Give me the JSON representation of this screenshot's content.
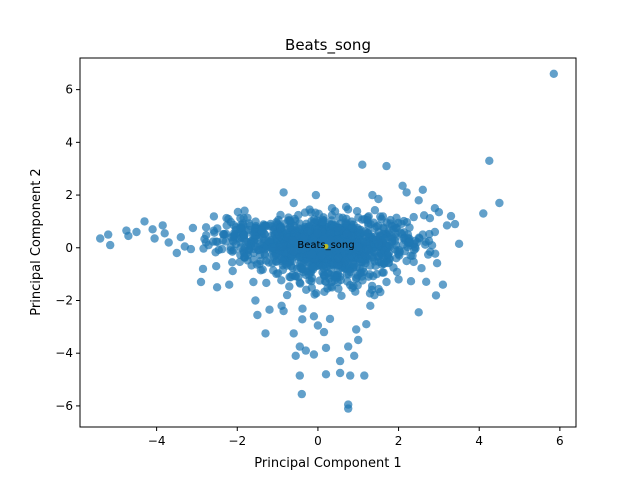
{
  "chart_data": {
    "type": "scatter",
    "title": "Beats_song",
    "xlabel": "Principal Component 1",
    "ylabel": "Principal Component 2",
    "xlim": [
      -5.9,
      6.4
    ],
    "ylim": [
      -6.8,
      7.2
    ],
    "xticks": [
      -4,
      -2,
      0,
      2,
      4,
      6
    ],
    "yticks": [
      -6,
      -4,
      -2,
      0,
      2,
      4,
      6
    ],
    "xtick_labels": [
      "−4",
      "−2",
      "0",
      "2",
      "4",
      "6"
    ],
    "ytick_labels": [
      "−6",
      "−4",
      "−2",
      "0",
      "2",
      "4",
      "6"
    ],
    "grid": false,
    "colors": {
      "points": "#1f77b4",
      "highlight": "#bcbd22"
    },
    "annotation": {
      "text": "Beats_song",
      "x": 0.2,
      "y": 0.1
    },
    "highlight_point": {
      "x": 0.2,
      "y": 0.05
    },
    "outliers": [
      [
        5.85,
        6.6
      ],
      [
        4.25,
        3.3
      ],
      [
        4.5,
        1.7
      ],
      [
        4.1,
        1.3
      ],
      [
        3.5,
        0.15
      ],
      [
        3.1,
        -1.4
      ],
      [
        1.1,
        3.15
      ],
      [
        1.7,
        3.1
      ],
      [
        2.1,
        2.35
      ],
      [
        2.6,
        2.2
      ],
      [
        2.2,
        2.1
      ],
      [
        2.5,
        1.8
      ],
      [
        2.9,
        1.5
      ],
      [
        3.0,
        1.35
      ],
      [
        3.3,
        1.2
      ],
      [
        3.4,
        0.9
      ],
      [
        3.2,
        0.85
      ],
      [
        2.9,
        0.6
      ],
      [
        2.6,
        0.5
      ],
      [
        2.3,
        -0.3
      ],
      [
        2.2,
        -0.5
      ],
      [
        2.5,
        -2.45
      ],
      [
        2.0,
        -1.2
      ],
      [
        1.7,
        -1.3
      ],
      [
        1.4,
        -1.8
      ],
      [
        1.3,
        -2.2
      ],
      [
        1.2,
        -2.9
      ],
      [
        1.0,
        -3.5
      ],
      [
        0.95,
        -3.1
      ],
      [
        0.9,
        -4.1
      ],
      [
        1.15,
        -4.85
      ],
      [
        0.75,
        -5.95
      ],
      [
        0.75,
        -6.1
      ],
      [
        0.8,
        -4.85
      ],
      [
        0.55,
        -4.75
      ],
      [
        0.75,
        -3.75
      ],
      [
        0.55,
        -4.3
      ],
      [
        0.2,
        -4.8
      ],
      [
        -0.1,
        -4.05
      ],
      [
        0.2,
        -3.8
      ],
      [
        0.15,
        -3.2
      ],
      [
        -0.3,
        -3.9
      ],
      [
        -0.45,
        -3.75
      ],
      [
        -0.55,
        -4.1
      ],
      [
        -0.45,
        -4.85
      ],
      [
        -0.4,
        -5.55
      ],
      [
        -0.6,
        -3.25
      ],
      [
        -1.3,
        -3.25
      ],
      [
        -1.5,
        -2.55
      ],
      [
        -1.2,
        -2.35
      ],
      [
        -1.55,
        -2.0
      ],
      [
        -0.9,
        -2.2
      ],
      [
        -0.85,
        -2.4
      ],
      [
        -0.1,
        -2.6
      ],
      [
        0.0,
        -2.95
      ],
      [
        0.3,
        -2.7
      ],
      [
        -1.6,
        -1.3
      ],
      [
        -2.2,
        -1.4
      ],
      [
        -2.5,
        -1.5
      ],
      [
        -2.9,
        -1.3
      ],
      [
        -2.85,
        -0.8
      ],
      [
        -5.4,
        0.35
      ],
      [
        -5.2,
        0.5
      ],
      [
        -5.15,
        0.1
      ],
      [
        -4.75,
        0.65
      ],
      [
        -4.7,
        0.45
      ],
      [
        -4.5,
        0.6
      ],
      [
        -4.3,
        1.0
      ],
      [
        -4.1,
        0.7
      ],
      [
        -4.05,
        0.35
      ],
      [
        -3.85,
        0.85
      ],
      [
        -3.8,
        0.55
      ],
      [
        -3.7,
        0.2
      ],
      [
        -3.5,
        -0.2
      ],
      [
        -3.4,
        0.4
      ],
      [
        -3.3,
        0.05
      ],
      [
        -3.15,
        -0.05
      ],
      [
        -3.1,
        0.75
      ],
      [
        -0.85,
        2.1
      ],
      [
        -0.6,
        1.7
      ],
      [
        -0.05,
        2.0
      ],
      [
        0.35,
        1.5
      ],
      [
        1.35,
        2.0
      ],
      [
        1.5,
        1.85
      ],
      [
        0.7,
        1.55
      ]
    ],
    "cluster": {
      "count": 1500,
      "seed": 7,
      "components": [
        {
          "weight": 0.55,
          "cx": 0.1,
          "cy": 0.15,
          "sx": 0.65,
          "sy": 0.42
        },
        {
          "weight": 0.2,
          "cx": 1.2,
          "cy": 0.2,
          "sx": 0.75,
          "sy": 0.55
        },
        {
          "weight": 0.15,
          "cx": -1.4,
          "cy": 0.3,
          "sx": 0.8,
          "sy": 0.45
        },
        {
          "weight": 0.1,
          "cx": 0.3,
          "cy": -0.8,
          "sx": 0.7,
          "sy": 0.6
        }
      ]
    }
  }
}
